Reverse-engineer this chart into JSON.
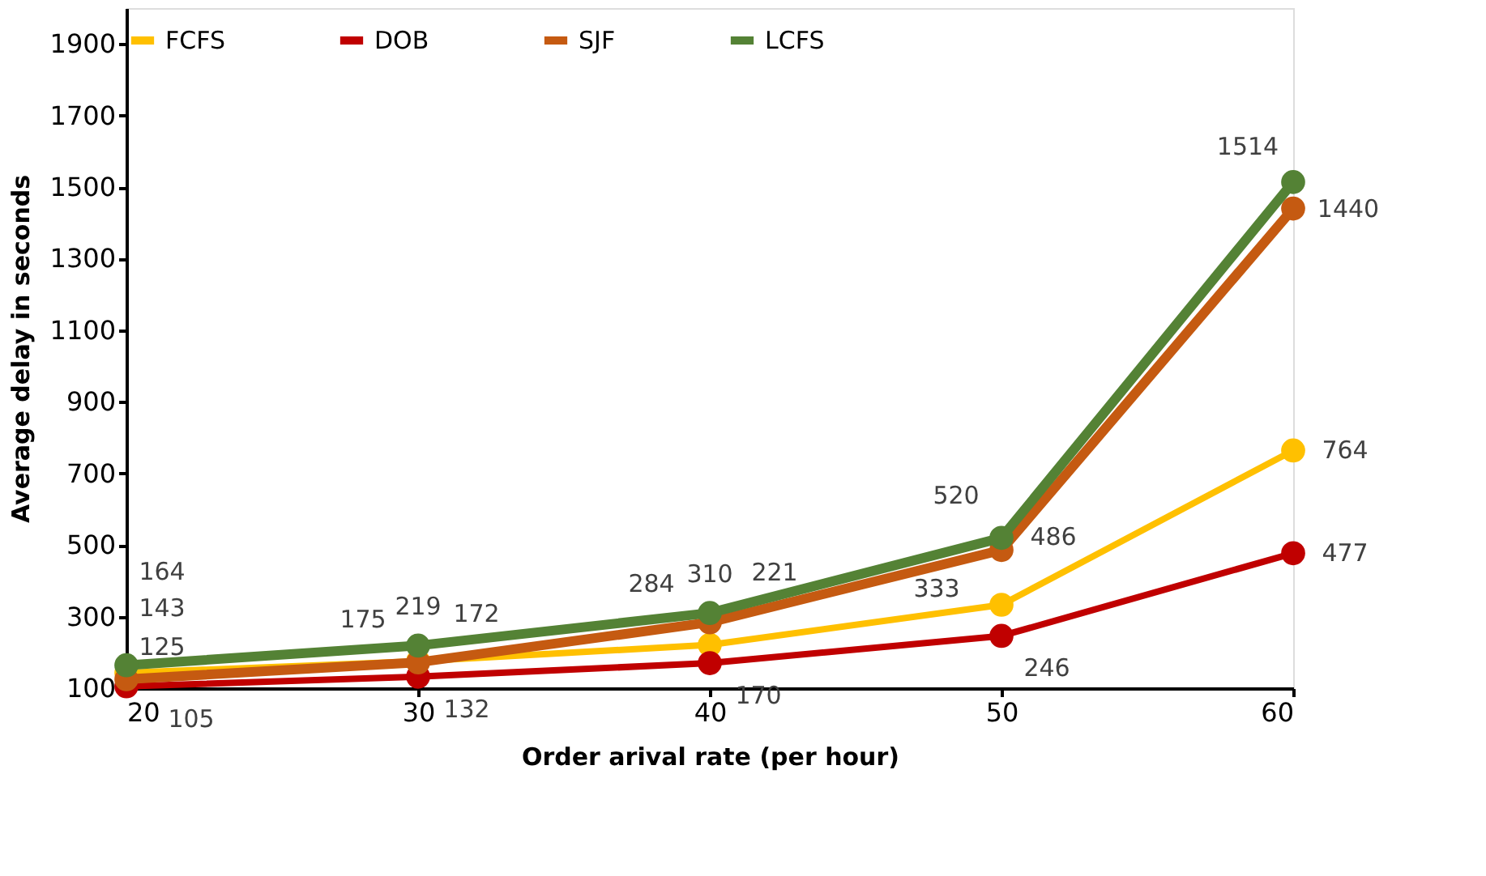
{
  "chart_data": {
    "type": "line",
    "xlabel": "Order arival rate (per hour)",
    "ylabel": "Average delay in seconds",
    "x": [
      20,
      30,
      40,
      50,
      60
    ],
    "series": [
      {
        "name": "FCFS",
        "color": "#ffc000",
        "values": [
          143,
          175,
          221,
          333,
          764
        ]
      },
      {
        "name": "DOB",
        "color": "#c00000",
        "values": [
          105,
          132,
          170,
          246,
          477
        ]
      },
      {
        "name": "SJF",
        "color": "#c55a11",
        "values": [
          125,
          172,
          284,
          486,
          1440
        ]
      },
      {
        "name": "LCFS",
        "color": "#548235",
        "values": [
          164,
          219,
          310,
          520,
          1514
        ]
      }
    ],
    "xlim": [
      20,
      60
    ],
    "xticks": [
      20,
      30,
      40,
      50,
      60
    ],
    "ylim": [
      100,
      2000
    ],
    "yticks": [
      100,
      300,
      500,
      700,
      900,
      1100,
      1300,
      1500,
      1700,
      1900
    ],
    "grid": false,
    "legend": "top",
    "marker": "circle",
    "line_style": "solid",
    "data_labels": true
  }
}
